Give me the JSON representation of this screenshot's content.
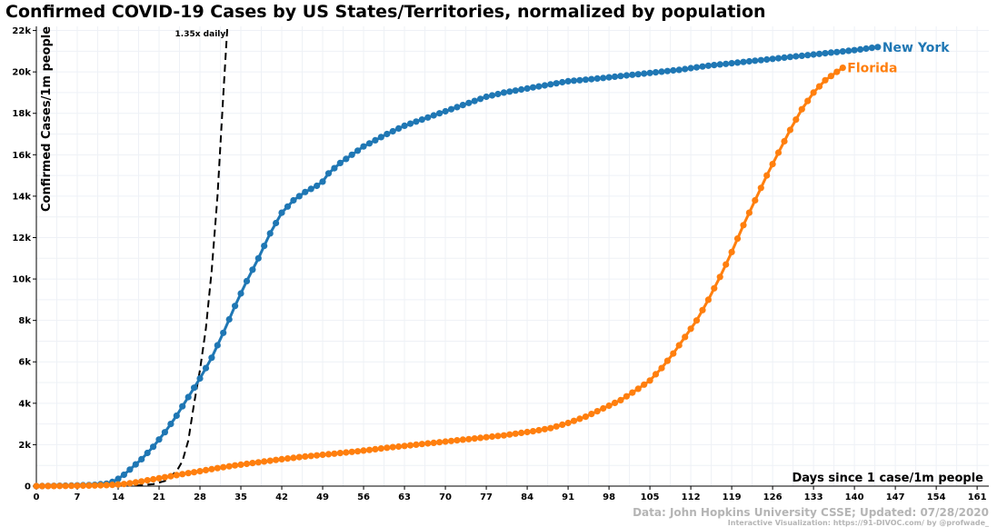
{
  "title": "Confirmed COVID-19 Cases by US States/Territories, normalized by population",
  "source_note": "Data: John Hopkins University CSSE; Updated: 07/28/2020",
  "credit_note": "Interactive Visualization: https://91-DIVOC.com/ by @profwade_",
  "chart_data": {
    "type": "line",
    "title": "Confirmed COVID-19 Cases by US States/Territories, normalized by population",
    "xlabel": "Days since 1 case/1m people",
    "ylabel": "Confirmed Cases/1m people",
    "xlim": [
      0,
      163
    ],
    "ylim": [
      0,
      22200
    ],
    "x_ticks": [
      0,
      7,
      14,
      21,
      28,
      35,
      42,
      49,
      56,
      63,
      70,
      77,
      84,
      91,
      98,
      105,
      112,
      119,
      126,
      133,
      140,
      147,
      154,
      161
    ],
    "y_ticks": [
      0,
      2000,
      4000,
      6000,
      8000,
      10000,
      12000,
      14000,
      16000,
      18000,
      20000,
      22000
    ],
    "y_tick_labels": [
      "0",
      "2k",
      "4k",
      "6k",
      "8k",
      "10k",
      "12k",
      "14k",
      "16k",
      "18k",
      "20k",
      "22k"
    ],
    "grid": true,
    "reference_line": {
      "label": "1.35x daily",
      "growth": 1.35,
      "points": [
        [
          17,
          20
        ],
        [
          20,
          90
        ],
        [
          22,
          250
        ],
        [
          24,
          720
        ],
        [
          25,
          1200
        ],
        [
          26,
          2200
        ],
        [
          27,
          4000
        ],
        [
          28,
          5600
        ],
        [
          29,
          7600
        ],
        [
          30,
          10400
        ],
        [
          31,
          14000
        ],
        [
          32,
          18900
        ],
        [
          32.7,
          22200
        ]
      ]
    },
    "series": [
      {
        "name": "New York",
        "color": "#1f77b4",
        "x": [
          0,
          5,
          10,
          12,
          13,
          14,
          15,
          16,
          18,
          20,
          22,
          24,
          26,
          28,
          30,
          32,
          34,
          36,
          38,
          40,
          42,
          44,
          46,
          48,
          49,
          50,
          52,
          54,
          56,
          58,
          60,
          63,
          66,
          70,
          74,
          77,
          80,
          84,
          88,
          91,
          95,
          100,
          105,
          110,
          115,
          120,
          125,
          130,
          135,
          140,
          144
        ],
        "y": [
          0,
          20,
          60,
          120,
          200,
          350,
          550,
          800,
          1300,
          1900,
          2600,
          3400,
          4300,
          5200,
          6200,
          7400,
          8700,
          9900,
          11000,
          12200,
          13200,
          13800,
          14200,
          14500,
          14700,
          15100,
          15600,
          16000,
          16400,
          16700,
          17000,
          17400,
          17700,
          18100,
          18500,
          18800,
          19000,
          19200,
          19400,
          19550,
          19650,
          19800,
          19950,
          20100,
          20300,
          20450,
          20600,
          20750,
          20900,
          21050,
          21200
        ]
      },
      {
        "name": "Florida",
        "color": "#ff7f0e",
        "x": [
          0,
          5,
          10,
          13,
          15,
          17,
          19,
          21,
          23,
          25,
          28,
          31,
          34,
          38,
          42,
          46,
          50,
          55,
          60,
          65,
          70,
          75,
          80,
          85,
          88,
          91,
          94,
          97,
          100,
          103,
          105,
          107,
          109,
          111,
          113,
          115,
          117,
          119,
          121,
          123,
          125,
          127,
          129,
          131,
          133,
          135,
          137,
          138
        ],
        "y": [
          0,
          10,
          30,
          60,
          100,
          180,
          280,
          380,
          480,
          580,
          720,
          870,
          1000,
          1150,
          1300,
          1430,
          1540,
          1680,
          1850,
          2000,
          2150,
          2300,
          2450,
          2650,
          2800,
          3050,
          3350,
          3750,
          4150,
          4700,
          5100,
          5700,
          6400,
          7200,
          8000,
          9000,
          10100,
          11300,
          12600,
          13800,
          15000,
          16100,
          17200,
          18200,
          19000,
          19600,
          20000,
          20200
        ]
      }
    ]
  }
}
